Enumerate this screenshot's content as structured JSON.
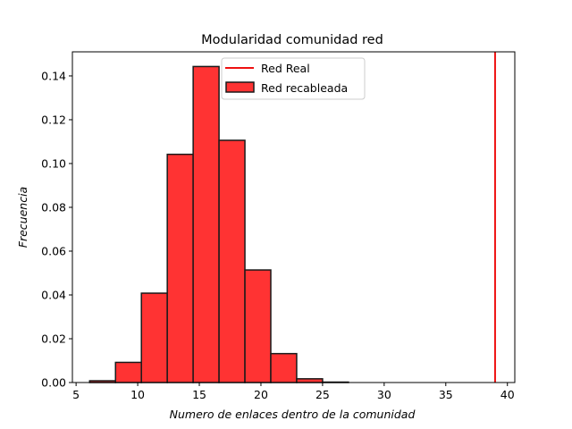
{
  "chart_data": {
    "type": "bar",
    "title": "Modularidad  comunidad red",
    "xlabel": "Numero de enlaces dentro de la comunidad",
    "ylabel": "Frecuencia",
    "xlim": [
      4.7,
      40.6
    ],
    "ylim": [
      0,
      0.151
    ],
    "xticks": [
      5,
      10,
      15,
      20,
      25,
      30,
      35,
      40
    ],
    "yticks": [
      0.0,
      0.02,
      0.04,
      0.06,
      0.08,
      0.1,
      0.12,
      0.14
    ],
    "grid": false,
    "legend_position": "top-center",
    "bar_color": "#ff3333",
    "edge_color": "#1a1a1a",
    "bins": [
      {
        "x0": 6.1,
        "x1": 8.2,
        "value": 0.0008
      },
      {
        "x0": 8.2,
        "x1": 10.3,
        "value": 0.0092
      },
      {
        "x0": 10.3,
        "x1": 12.4,
        "value": 0.0408
      },
      {
        "x0": 12.4,
        "x1": 14.5,
        "value": 0.1042
      },
      {
        "x0": 14.5,
        "x1": 16.6,
        "value": 0.1443
      },
      {
        "x0": 16.6,
        "x1": 18.7,
        "value": 0.1106
      },
      {
        "x0": 18.7,
        "x1": 20.8,
        "value": 0.0514
      },
      {
        "x0": 20.8,
        "x1": 22.9,
        "value": 0.0132
      },
      {
        "x0": 22.9,
        "x1": 25.0,
        "value": 0.0017
      },
      {
        "x0": 25.0,
        "x1": 27.1,
        "value": 0.0002
      }
    ],
    "series": [
      {
        "name": "Red recableada",
        "kind": "histogram",
        "color": "#ff3333"
      },
      {
        "name": "Red Real",
        "kind": "vline",
        "x": 39,
        "color": "#ee1111"
      }
    ]
  }
}
